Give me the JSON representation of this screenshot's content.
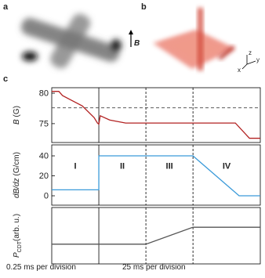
{
  "panel_labels": [
    "a",
    "b",
    "c"
  ],
  "image_labels": {
    "field": "B",
    "axes": [
      "z",
      "x",
      "y"
    ]
  },
  "x_scales": [
    "0.25 ms per division",
    "25 ms per division"
  ],
  "chart_data": [
    {
      "type": "line",
      "ylabel": "B",
      "ylabel_unit": "(G)",
      "x": [
        0,
        0.15,
        0.23,
        0.65,
        0.9,
        0.97,
        1.0,
        1.03,
        1.23,
        1.57,
        3.9,
        4.2,
        4.43
      ],
      "series": [
        {
          "color": "#b22222",
          "values": [
            80.3,
            80.3,
            79.6,
            77.9,
            76.0,
            75.1,
            74.9,
            76.3,
            75.6,
            75.1,
            75.1,
            72.6,
            72.6
          ]
        }
      ],
      "xlim": [
        0,
        4.43
      ],
      "xmarkers": [
        1,
        2,
        3
      ],
      "hline": 77.6,
      "ylim": [
        71.9,
        80.9
      ],
      "yticks": [
        75,
        80
      ]
    },
    {
      "type": "line",
      "ylabel": "dB/dz",
      "ylabel_unit": "(G/cm)",
      "x": [
        0,
        1,
        1,
        3,
        3.98,
        4.43
      ],
      "series": [
        {
          "color": "#3a9ad9",
          "values": [
            6,
            6,
            40,
            40,
            0,
            0
          ]
        }
      ],
      "xlim": [
        0,
        4.43
      ],
      "xmarkers": [
        1,
        2,
        3
      ],
      "annotations": [
        "I",
        "II",
        "III",
        "IV"
      ],
      "ylim": [
        -9.4,
        51
      ],
      "yticks": [
        0,
        20,
        40
      ]
    },
    {
      "type": "line",
      "ylabel": "P",
      "ylabel_sub": "CDT",
      "ylabel_unit": "(arb. u.)",
      "x": [
        0,
        2,
        3,
        4.43
      ],
      "series": [
        {
          "color": "#555555",
          "values": [
            0.35,
            0.35,
            0.65,
            0.65
          ]
        }
      ],
      "xlim": [
        0,
        4.43
      ],
      "xmarkers": [
        1,
        2,
        3
      ],
      "ylim": [
        0,
        1
      ],
      "yticks": []
    }
  ]
}
